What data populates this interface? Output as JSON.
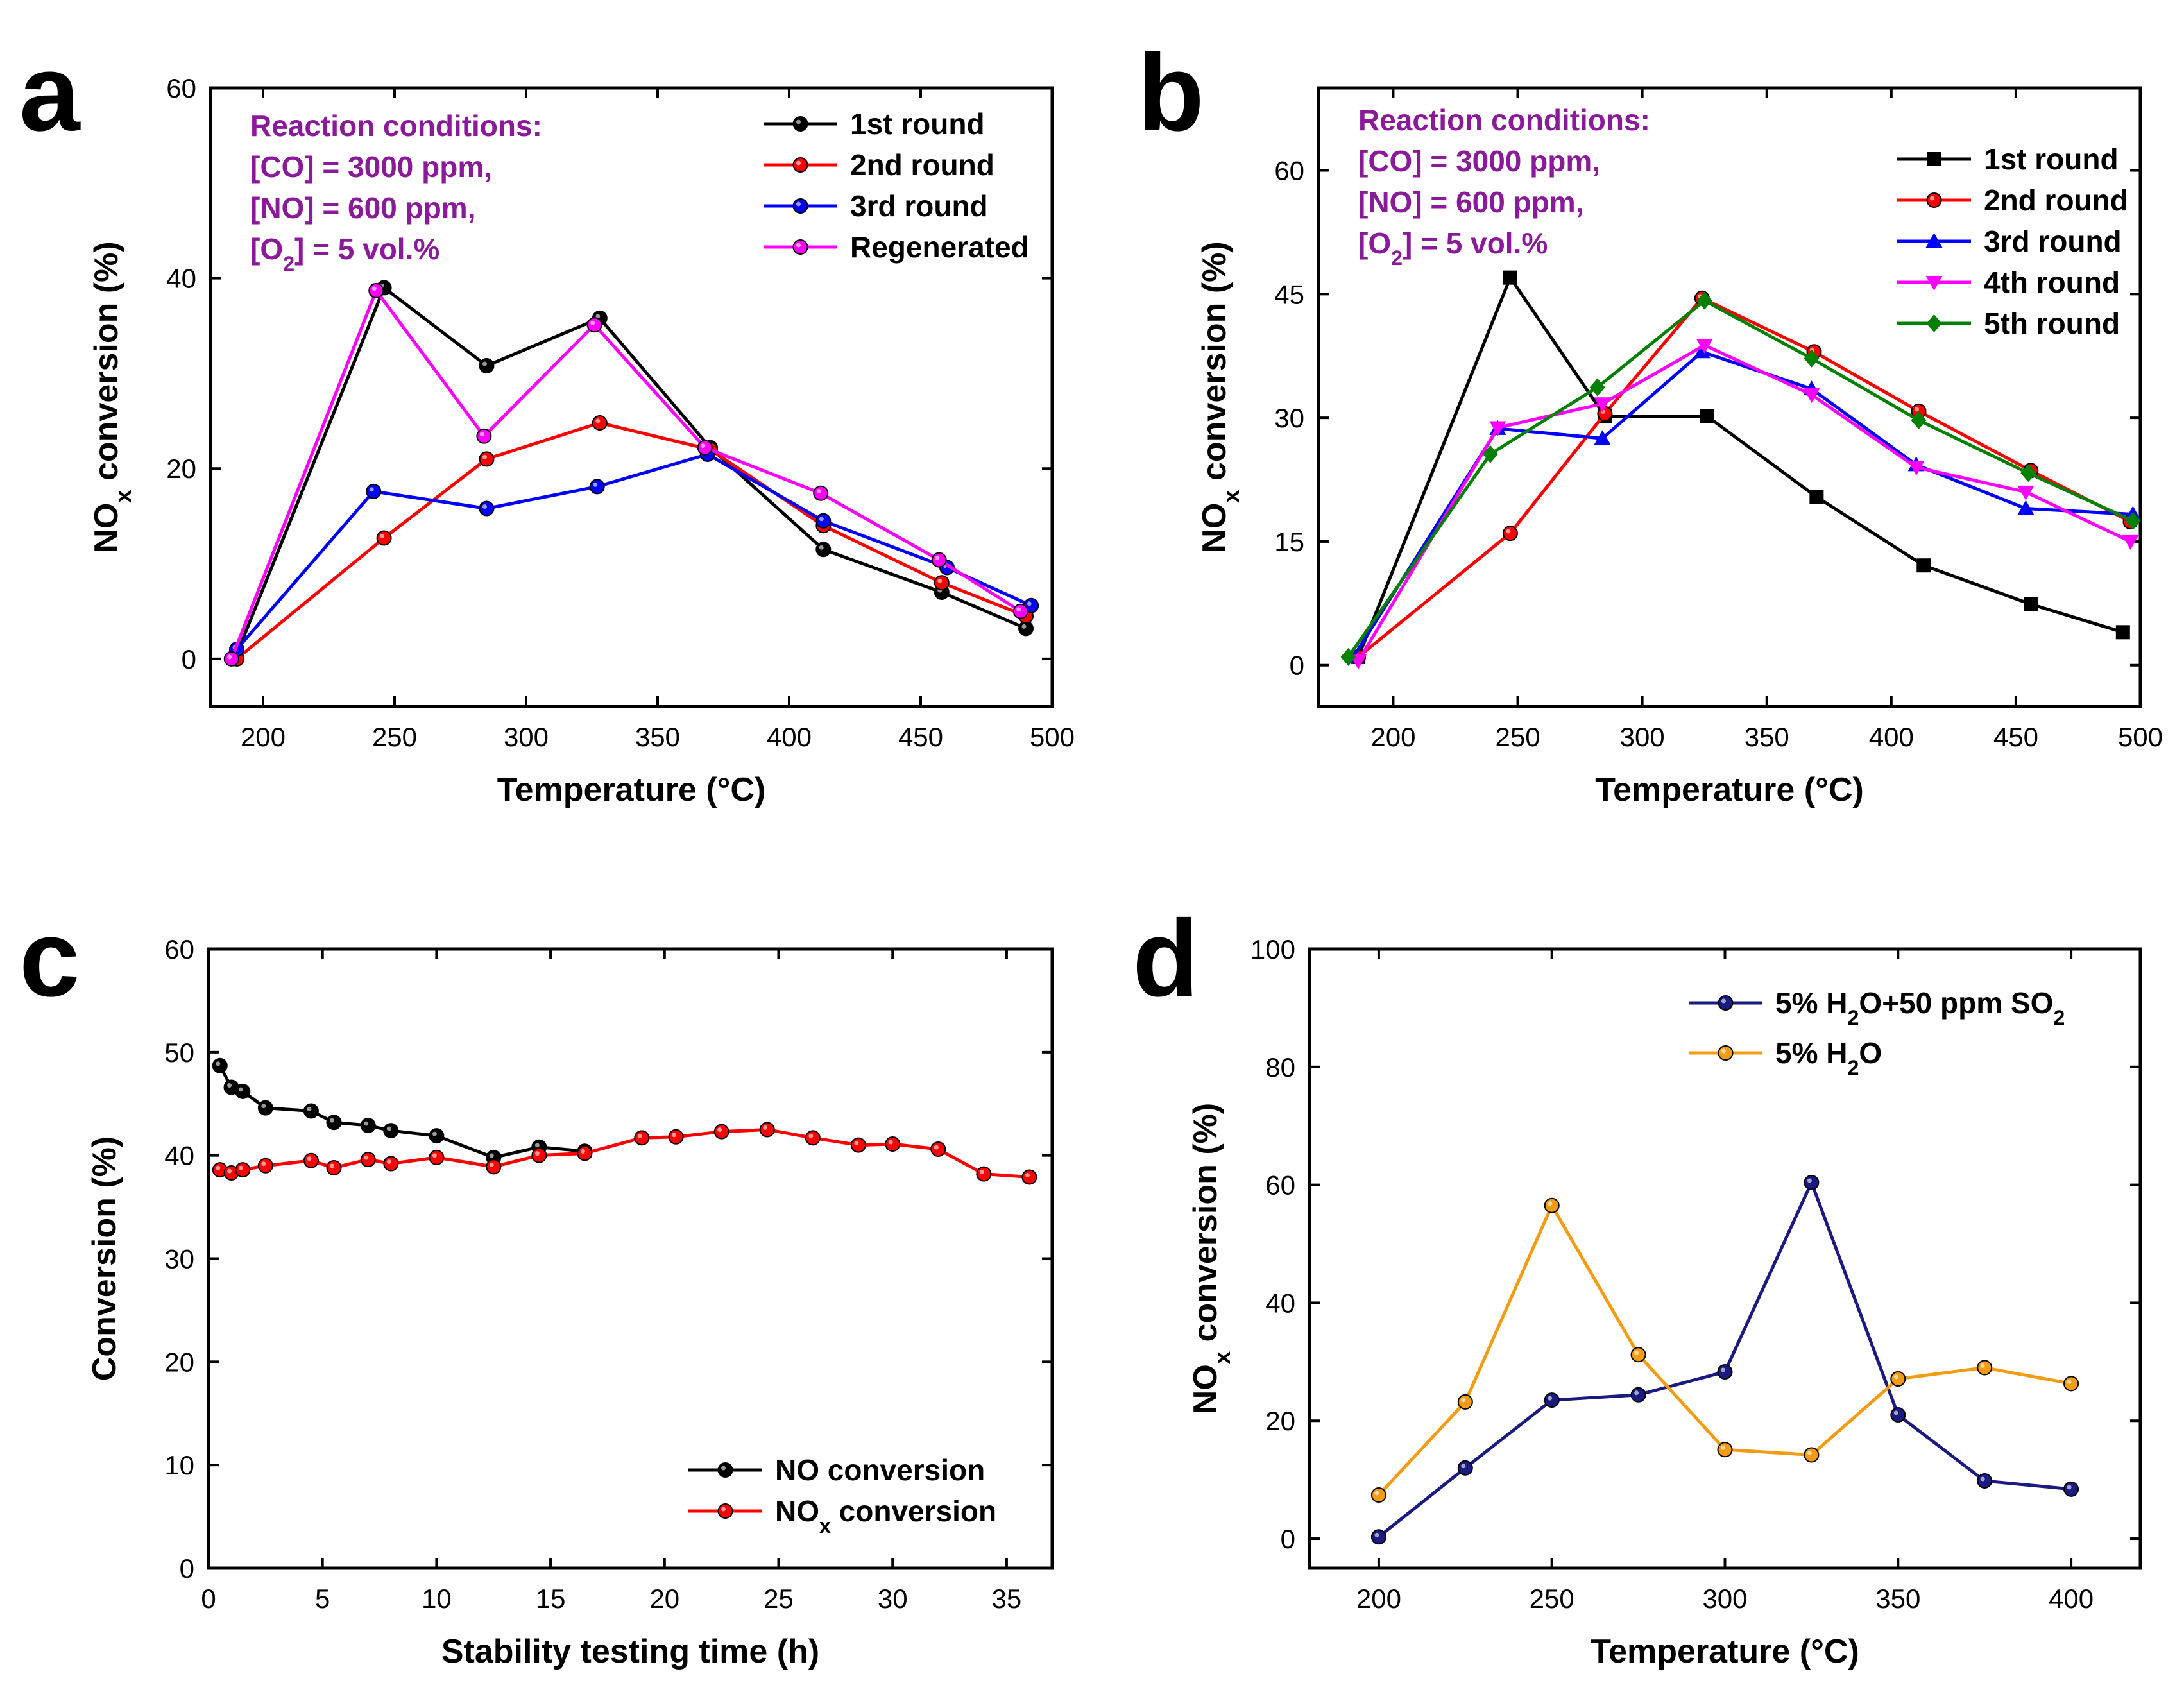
{
  "chart_data": [
    {
      "panel": "a",
      "type": "line",
      "xlabel": "Temperature (°C)",
      "ylabel": "NOx conversion (%)",
      "xlim": [
        180,
        500
      ],
      "ylim": [
        -5,
        60
      ],
      "xticks": [
        200,
        250,
        300,
        350,
        400,
        450,
        500
      ],
      "yticks": [
        0,
        20,
        40,
        60
      ],
      "conditions": [
        "Reaction conditions:",
        "[CO] = 3000 ppm,",
        "[NO] = 600 ppm,",
        "[O2] = 5 vol.%"
      ],
      "series": [
        {
          "name": "1st round",
          "color": "#000000",
          "marker": "circle",
          "x": [
            190,
            246,
            285,
            328,
            370,
            413,
            458,
            490
          ],
          "y": [
            0.5,
            39,
            30.8,
            35.8,
            22.2,
            11.5,
            7,
            3.2
          ]
        },
        {
          "name": "2nd round",
          "color": "#FF0000",
          "marker": "circle",
          "x": [
            190,
            246,
            285,
            328,
            370,
            413,
            458,
            490
          ],
          "y": [
            0,
            12.7,
            21,
            24.8,
            22,
            14,
            8,
            4.5
          ]
        },
        {
          "name": "3rd round",
          "color": "#0000FF",
          "marker": "circle",
          "x": [
            190,
            242,
            285,
            327,
            369,
            413,
            460,
            492
          ],
          "y": [
            1,
            17.6,
            15.8,
            18.1,
            21.5,
            14.5,
            9.6,
            5.6
          ]
        },
        {
          "name": "Regenerated",
          "color": "#FF00FF",
          "marker": "circle",
          "x": [
            188,
            243,
            284,
            326,
            368,
            412,
            457,
            488
          ],
          "y": [
            0,
            38.7,
            23.4,
            35.1,
            22.2,
            17.4,
            10.4,
            5
          ]
        }
      ]
    },
    {
      "panel": "b",
      "type": "line",
      "xlabel": "Temperature (°C)",
      "ylabel": "NOx conversion (%)",
      "xlim": [
        170,
        500
      ],
      "ylim": [
        -5,
        70
      ],
      "xticks": [
        200,
        250,
        300,
        350,
        400,
        450,
        500
      ],
      "yticks": [
        0,
        15,
        30,
        45,
        60
      ],
      "conditions": [
        "Reaction conditions:",
        "[CO] = 3000 ppm,",
        "[NO] = 600 ppm,",
        "[O2] = 5 vol.%"
      ],
      "series": [
        {
          "name": "1st round",
          "color": "#000000",
          "marker": "square",
          "x": [
            186,
            247,
            285,
            326,
            370,
            413,
            456,
            493
          ],
          "y": [
            1,
            47,
            30.2,
            30.2,
            20.4,
            12.1,
            7.4,
            4
          ]
        },
        {
          "name": "2nd round",
          "color": "#FF0000",
          "marker": "circle",
          "x": [
            186,
            247,
            285,
            324,
            369,
            411,
            456,
            496
          ],
          "y": [
            1,
            16,
            30.5,
            44.5,
            38,
            30.8,
            23.6,
            17.4
          ]
        },
        {
          "name": "3rd round",
          "color": "#0000FF",
          "marker": "triangle-up",
          "x": [
            184,
            242,
            284,
            324,
            368,
            410,
            454,
            497
          ],
          "y": [
            1,
            28.7,
            27.5,
            38,
            33.5,
            24.3,
            19,
            18.3
          ]
        },
        {
          "name": "4th round",
          "color": "#FF00FF",
          "marker": "triangle-down",
          "x": [
            186,
            242,
            284,
            325,
            368,
            410,
            454,
            496
          ],
          "y": [
            0.5,
            28.8,
            31.7,
            38.8,
            32.8,
            24,
            21,
            15
          ]
        },
        {
          "name": "5th round",
          "color": "#008000",
          "marker": "diamond",
          "x": [
            182,
            239,
            282,
            325,
            368,
            411,
            455,
            497
          ],
          "y": [
            1,
            25.6,
            33.7,
            44.2,
            37.2,
            29.7,
            23.3,
            17.5
          ]
        }
      ]
    },
    {
      "panel": "c",
      "type": "line",
      "xlabel": "Stability testing time (h)",
      "ylabel": "Conversion (%)",
      "xlim": [
        0,
        37
      ],
      "ylim": [
        0,
        60
      ],
      "xticks": [
        0,
        5,
        10,
        15,
        20,
        25,
        30,
        35
      ],
      "yticks": [
        0,
        10,
        20,
        30,
        40,
        50,
        60
      ],
      "series": [
        {
          "name": "NO conversion",
          "color": "#000000",
          "marker": "circle",
          "x": [
            0.5,
            1,
            1.5,
            2.5,
            4.5,
            5.5,
            7,
            8,
            10,
            12.5,
            14.5,
            16.5
          ],
          "y": [
            48.7,
            46.6,
            46.2,
            44.6,
            44.3,
            43.2,
            42.9,
            42.4,
            41.9,
            39.8,
            40.8,
            40.4
          ]
        },
        {
          "name": "NOx conversion",
          "color": "#FF0000",
          "marker": "circle",
          "x": [
            0.5,
            1,
            1.5,
            2.5,
            4.5,
            5.5,
            7,
            8,
            10,
            12.5,
            14.5,
            16.5,
            19,
            20.5,
            22.5,
            24.5,
            26.5,
            28.5,
            30,
            32,
            34,
            36
          ],
          "y": [
            38.6,
            38.3,
            38.6,
            39,
            39.5,
            38.8,
            39.6,
            39.2,
            39.8,
            38.9,
            40,
            40.2,
            41.7,
            41.8,
            42.3,
            42.5,
            41.7,
            41,
            41.1,
            40.6,
            38.2,
            37.9
          ]
        }
      ]
    },
    {
      "panel": "d",
      "type": "line",
      "xlabel": "Temperature (°C)",
      "ylabel": "NOx conversion (%)",
      "xlim": [
        180,
        420
      ],
      "ylim": [
        -5,
        100
      ],
      "xticks": [
        200,
        250,
        300,
        350,
        400
      ],
      "yticks": [
        0,
        20,
        40,
        60,
        80,
        100
      ],
      "series": [
        {
          "name": "5% H2O+50 ppm SO2",
          "color": "#1A1A80",
          "marker": "circle",
          "x": [
            200,
            225,
            250,
            275,
            300,
            325,
            350,
            375,
            400
          ],
          "y": [
            0.3,
            12,
            23.5,
            24.4,
            28.3,
            60.4,
            21,
            9.8,
            8.4
          ]
        },
        {
          "name": "5% H2O",
          "color": "#F39C12",
          "marker": "circle",
          "x": [
            200,
            225,
            250,
            275,
            300,
            325,
            350,
            375,
            400
          ],
          "y": [
            7.4,
            23.2,
            56.5,
            31.2,
            15.1,
            14.2,
            27.1,
            29,
            26.3
          ]
        }
      ]
    }
  ]
}
